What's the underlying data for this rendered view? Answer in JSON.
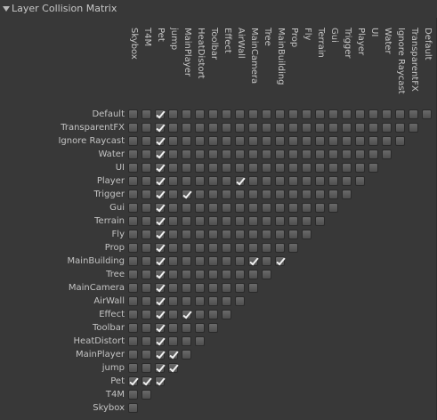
{
  "header": {
    "title": "Layer Collision Matrix",
    "arrow_icon": "triangle-down-icon"
  },
  "layers": [
    "Default",
    "TransparentFX",
    "Ignore Raycast",
    "Water",
    "UI",
    "Player",
    "Trigger",
    "Gui",
    "Terrain",
    "Fly",
    "Prop",
    "MainBuilding",
    "Tree",
    "MainCamera",
    "AirWall",
    "Effect",
    "Toolbar",
    "HeatDistort",
    "MainPlayer",
    "jump",
    "Pet",
    "T4M",
    "Skybox"
  ],
  "checked": [
    [
      "Default",
      "Pet"
    ],
    [
      "TransparentFX",
      "Pet"
    ],
    [
      "Ignore Raycast",
      "Pet"
    ],
    [
      "Water",
      "Pet"
    ],
    [
      "UI",
      "Pet"
    ],
    [
      "Player",
      "Pet"
    ],
    [
      "Player",
      "AirWall"
    ],
    [
      "Trigger",
      "Pet"
    ],
    [
      "Trigger",
      "MainPlayer"
    ],
    [
      "Trigger",
      "Player"
    ],
    [
      "Gui",
      "Pet"
    ],
    [
      "Terrain",
      "Pet"
    ],
    [
      "Fly",
      "Pet"
    ],
    [
      "Prop",
      "Pet"
    ],
    [
      "MainBuilding",
      "Pet"
    ],
    [
      "MainBuilding",
      "MainCamera"
    ],
    [
      "MainBuilding",
      "MainBuilding"
    ],
    [
      "Tree",
      "Pet"
    ],
    [
      "MainCamera",
      "Pet"
    ],
    [
      "AirWall",
      "Pet"
    ],
    [
      "Effect",
      "Pet"
    ],
    [
      "Effect",
      "MainPlayer"
    ],
    [
      "Toolbar",
      "Pet"
    ],
    [
      "HeatDistort",
      "Pet"
    ],
    [
      "MainPlayer",
      "Pet"
    ],
    [
      "MainPlayer",
      "jump"
    ],
    [
      "jump",
      "Pet"
    ],
    [
      "jump",
      "jump"
    ],
    [
      "Pet",
      "Skybox"
    ],
    [
      "Pet",
      "T4M"
    ],
    [
      "Pet",
      "Pet"
    ]
  ],
  "checkmark_icon": "checkmark-icon"
}
